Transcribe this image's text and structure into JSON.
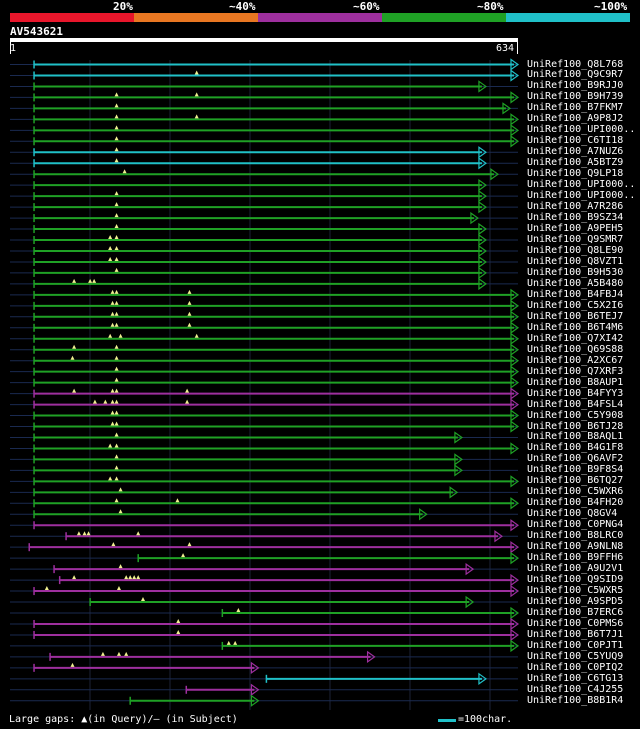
{
  "legend": {
    "colors": [
      "#e8162b",
      "#e87722",
      "#9e2f9e",
      "#1fa125",
      "#20c0c8"
    ],
    "labels": [
      "20%",
      "~40%",
      "~60%",
      "~80%",
      "~100%"
    ]
  },
  "query": {
    "id": "AV543621",
    "start": "1",
    "end": "634",
    "length": 634
  },
  "footer": {
    "gaps_text": "Large gaps: ▲(in Query)/— (in Subject)",
    "scale_text": "=100char."
  },
  "hits": [
    {
      "label": "UniRef100_Q8L768",
      "color": "cyan",
      "s": 30,
      "e": 634,
      "marks": []
    },
    {
      "label": "UniRef100_Q9C9R7",
      "color": "cyan",
      "s": 30,
      "e": 634,
      "marks": [
        233
      ]
    },
    {
      "label": "UniRef100_B9RJJ0",
      "color": "green",
      "s": 30,
      "e": 594,
      "marks": []
    },
    {
      "label": "UniRef100_B9H739",
      "color": "green",
      "s": 30,
      "e": 634,
      "marks": [
        133,
        233
      ]
    },
    {
      "label": "UniRef100_B7FKM7",
      "color": "green",
      "s": 30,
      "e": 624,
      "marks": [
        133
      ]
    },
    {
      "label": "UniRef100_A9P8J2",
      "color": "green",
      "s": 30,
      "e": 634,
      "marks": [
        133,
        233
      ]
    },
    {
      "label": "UniRef100_UPI000..",
      "color": "green",
      "s": 30,
      "e": 634,
      "marks": [
        133
      ]
    },
    {
      "label": "UniRef100_C6TI18",
      "color": "green",
      "s": 30,
      "e": 634,
      "marks": [
        133
      ]
    },
    {
      "label": "UniRef100_A7NUZ6",
      "color": "cyan",
      "s": 30,
      "e": 594,
      "marks": [
        133
      ]
    },
    {
      "label": "UniRef100_A5BTZ9",
      "color": "cyan",
      "s": 30,
      "e": 594,
      "marks": [
        133
      ]
    },
    {
      "label": "UniRef100_Q9LP18",
      "color": "green",
      "s": 30,
      "e": 609,
      "marks": [
        143
      ]
    },
    {
      "label": "UniRef100_UPI000..",
      "color": "green",
      "s": 30,
      "e": 594,
      "marks": []
    },
    {
      "label": "UniRef100_UPI000..",
      "color": "green",
      "s": 30,
      "e": 594,
      "marks": [
        133
      ]
    },
    {
      "label": "UniRef100_A7R286",
      "color": "green",
      "s": 30,
      "e": 594,
      "marks": [
        133
      ]
    },
    {
      "label": "UniRef100_B9SZ34",
      "color": "green",
      "s": 30,
      "e": 584,
      "marks": [
        133
      ]
    },
    {
      "label": "UniRef100_A9PEH5",
      "color": "green",
      "s": 30,
      "e": 594,
      "marks": [
        133
      ]
    },
    {
      "label": "UniRef100_Q9SMR7",
      "color": "green",
      "s": 30,
      "e": 594,
      "marks": [
        125,
        133
      ]
    },
    {
      "label": "UniRef100_Q8LE90",
      "color": "green",
      "s": 30,
      "e": 594,
      "marks": [
        125,
        133
      ]
    },
    {
      "label": "UniRef100_Q8VZT1",
      "color": "green",
      "s": 30,
      "e": 594,
      "marks": [
        125,
        133
      ]
    },
    {
      "label": "UniRef100_B9H530",
      "color": "green",
      "s": 30,
      "e": 594,
      "marks": [
        133
      ]
    },
    {
      "label": "UniRef100_A5B480",
      "color": "green",
      "s": 30,
      "e": 594,
      "marks": [
        80,
        100,
        105
      ]
    },
    {
      "label": "UniRef100_B4FBJ4",
      "color": "green",
      "s": 30,
      "e": 634,
      "marks": [
        128,
        133,
        224
      ]
    },
    {
      "label": "UniRef100_C5X2I6",
      "color": "green",
      "s": 30,
      "e": 634,
      "marks": [
        128,
        133,
        224
      ]
    },
    {
      "label": "UniRef100_B6TEJ7",
      "color": "green",
      "s": 30,
      "e": 634,
      "marks": [
        128,
        133,
        224
      ]
    },
    {
      "label": "UniRef100_B6T4M6",
      "color": "green",
      "s": 30,
      "e": 634,
      "marks": [
        128,
        133,
        224
      ]
    },
    {
      "label": "UniRef100_Q7XI42",
      "color": "green",
      "s": 30,
      "e": 634,
      "marks": [
        125,
        138,
        233
      ]
    },
    {
      "label": "UniRef100_Q69S88",
      "color": "green",
      "s": 30,
      "e": 634,
      "marks": [
        80,
        133
      ]
    },
    {
      "label": "UniRef100_A2XC67",
      "color": "green",
      "s": 30,
      "e": 634,
      "marks": [
        78,
        133
      ]
    },
    {
      "label": "UniRef100_Q7XRF3",
      "color": "green",
      "s": 30,
      "e": 634,
      "marks": [
        133
      ]
    },
    {
      "label": "UniRef100_B8AUP1",
      "color": "green",
      "s": 30,
      "e": 634,
      "marks": [
        133
      ]
    },
    {
      "label": "UniRef100_B4FYY3",
      "color": "magenta",
      "s": 30,
      "e": 634,
      "marks": [
        80,
        128,
        133,
        221
      ]
    },
    {
      "label": "UniRef100_B4FSL4",
      "color": "magenta",
      "s": 30,
      "e": 634,
      "marks": [
        106,
        119,
        128,
        133,
        221
      ]
    },
    {
      "label": "UniRef100_C5Y908",
      "color": "green",
      "s": 30,
      "e": 634,
      "marks": [
        128,
        133
      ]
    },
    {
      "label": "UniRef100_B6TJ28",
      "color": "green",
      "s": 30,
      "e": 634,
      "marks": [
        128,
        133
      ]
    },
    {
      "label": "UniRef100_B8AQL1",
      "color": "green",
      "s": 30,
      "e": 564,
      "marks": [
        133
      ]
    },
    {
      "label": "UniRef100_B4G1F8",
      "color": "green",
      "s": 30,
      "e": 634,
      "marks": [
        125,
        133
      ]
    },
    {
      "label": "UniRef100_Q6AVF2",
      "color": "green",
      "s": 30,
      "e": 564,
      "marks": [
        133
      ]
    },
    {
      "label": "UniRef100_B9F8S4",
      "color": "green",
      "s": 30,
      "e": 564,
      "marks": [
        133
      ]
    },
    {
      "label": "UniRef100_B6TQ27",
      "color": "green",
      "s": 30,
      "e": 634,
      "marks": [
        125,
        133
      ]
    },
    {
      "label": "UniRef100_C5WXR6",
      "color": "green",
      "s": 30,
      "e": 558,
      "marks": [
        138
      ]
    },
    {
      "label": "UniRef100_B4FH20",
      "color": "green",
      "s": 30,
      "e": 634,
      "marks": [
        133,
        209
      ]
    },
    {
      "label": "UniRef100_Q8GV4",
      "color": "green",
      "s": 30,
      "e": 520,
      "marks": [
        138
      ]
    },
    {
      "label": "UniRef100_C0PNG4",
      "color": "magenta",
      "s": 30,
      "e": 634,
      "marks": []
    },
    {
      "label": "UniRef100_B8LRC0",
      "color": "magenta",
      "s": 70,
      "e": 614,
      "marks": [
        86,
        93,
        98,
        160
      ]
    },
    {
      "label": "UniRef100_A9NLN8",
      "color": "magenta",
      "s": 24,
      "e": 634,
      "marks": [
        129,
        224
      ]
    },
    {
      "label": "UniRef100_B9FFH6",
      "color": "green",
      "s": 160,
      "e": 634,
      "marks": [
        216
      ]
    },
    {
      "label": "UniRef100_A9U2V1",
      "color": "magenta",
      "s": 55,
      "e": 578,
      "marks": [
        138
      ]
    },
    {
      "label": "UniRef100_Q9SID9",
      "color": "magenta",
      "s": 62,
      "e": 634,
      "marks": [
        80,
        145,
        150,
        155,
        160
      ]
    },
    {
      "label": "UniRef100_C5WXR5",
      "color": "magenta",
      "s": 30,
      "e": 634,
      "marks": [
        46,
        136
      ]
    },
    {
      "label": "UniRef100_A9SPD5",
      "color": "green",
      "s": 100,
      "e": 578,
      "marks": [
        166
      ]
    },
    {
      "label": "UniRef100_B7ERC6",
      "color": "green",
      "s": 265,
      "e": 634,
      "marks": [
        285
      ]
    },
    {
      "label": "UniRef100_C0PMS6",
      "color": "magenta",
      "s": 30,
      "e": 634,
      "marks": [
        210
      ]
    },
    {
      "label": "UniRef100_B6T7J1",
      "color": "magenta",
      "s": 30,
      "e": 634,
      "marks": [
        210
      ]
    },
    {
      "label": "UniRef100_C0PJT1",
      "color": "green",
      "s": 265,
      "e": 634,
      "marks": [
        273,
        281
      ]
    },
    {
      "label": "UniRef100_C5YUQ9",
      "color": "magenta",
      "s": 50,
      "e": 455,
      "marks": [
        116,
        136,
        145
      ]
    },
    {
      "label": "UniRef100_C0PIQ2",
      "color": "magenta",
      "s": 30,
      "e": 310,
      "marks": [
        78
      ]
    },
    {
      "label": "UniRef100_C6TG13",
      "color": "cyan",
      "s": 320,
      "e": 594,
      "marks": []
    },
    {
      "label": "UniRef100_C4J255",
      "color": "magenta",
      "s": 220,
      "e": 310,
      "marks": []
    },
    {
      "label": "UniRef100_B8B1R4",
      "color": "green",
      "s": 150,
      "e": 310,
      "marks": []
    }
  ]
}
